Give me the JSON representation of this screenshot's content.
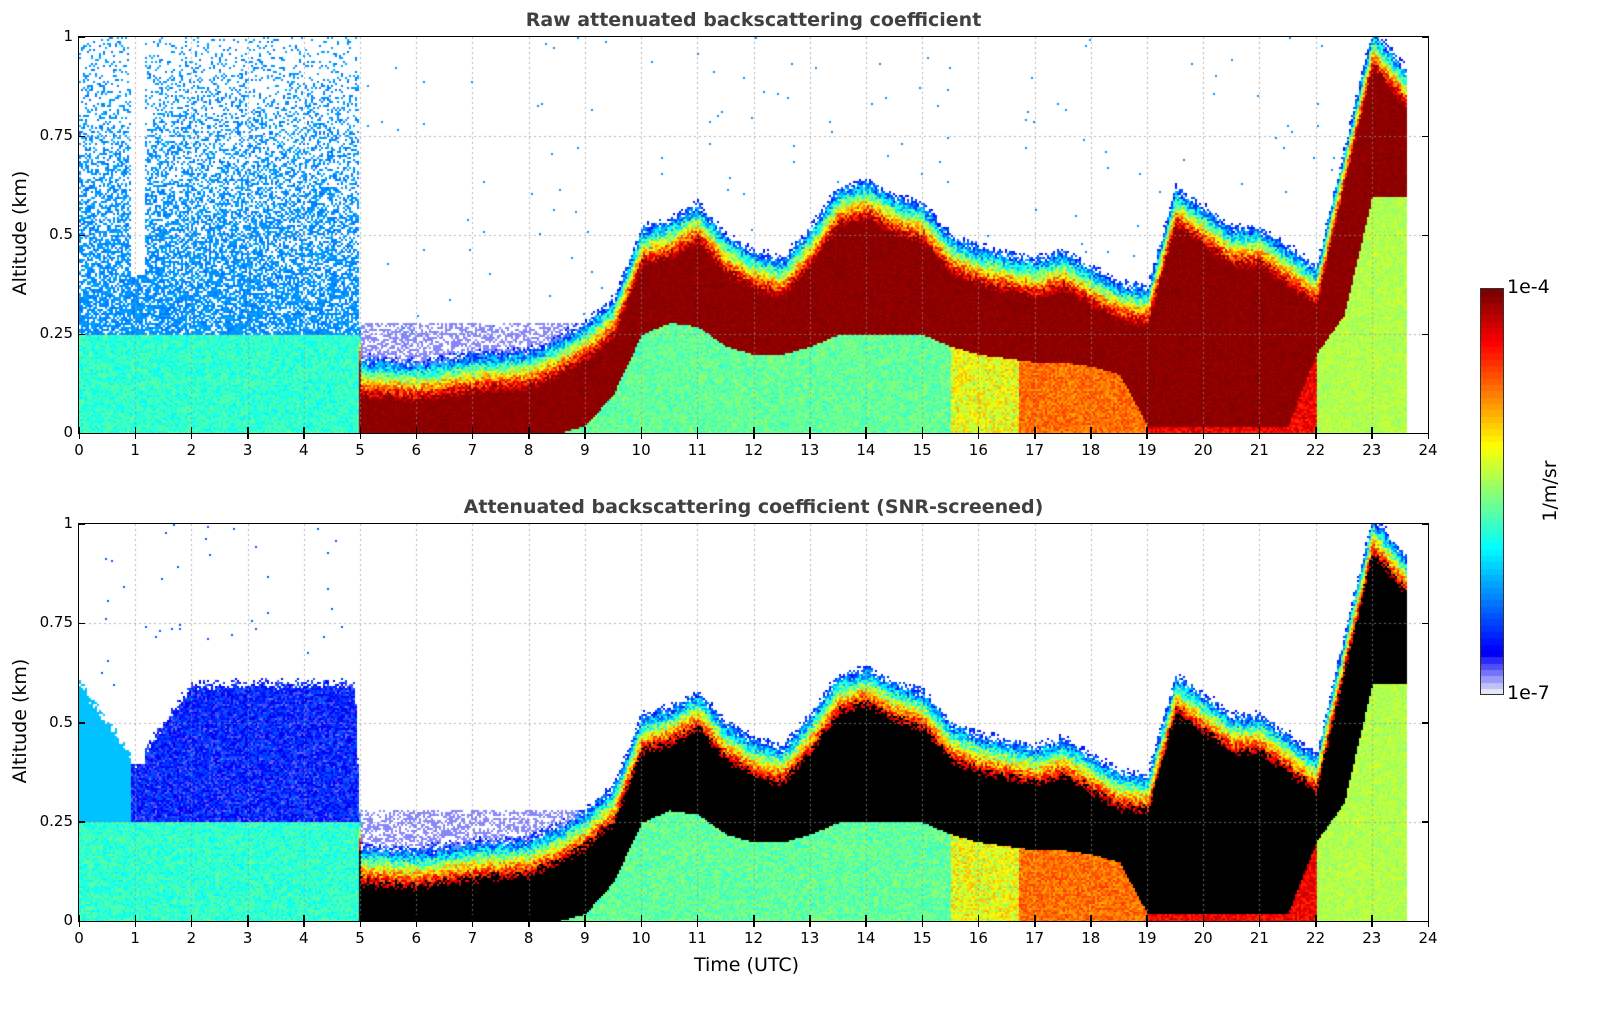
{
  "chart_data": [
    {
      "type": "heatmap",
      "title": "Raw attenuated backscattering coefficient",
      "ylabel": "Altitude (km)",
      "xlabel": "",
      "xlim": [
        0,
        24
      ],
      "ylim": [
        0,
        1
      ],
      "xticks": [
        "0",
        "1",
        "2",
        "3",
        "4",
        "5",
        "6",
        "7",
        "8",
        "9",
        "10",
        "11",
        "12",
        "13",
        "14",
        "15",
        "16",
        "17",
        "18",
        "19",
        "20",
        "21",
        "22",
        "23",
        "24"
      ],
      "yticks": [
        "0",
        "0.25",
        "0.5",
        "0.75",
        "1"
      ],
      "grid": true,
      "screened": false
    },
    {
      "type": "heatmap",
      "title": "Attenuated backscattering coefficient (SNR-screened)",
      "ylabel": "Altitude (km)",
      "xlabel": "Time (UTC)",
      "xlim": [
        0,
        24
      ],
      "ylim": [
        0,
        1
      ],
      "xticks": [
        "0",
        "1",
        "2",
        "3",
        "4",
        "5",
        "6",
        "7",
        "8",
        "9",
        "10",
        "11",
        "12",
        "13",
        "14",
        "15",
        "16",
        "17",
        "18",
        "19",
        "20",
        "21",
        "22",
        "23",
        "24"
      ],
      "yticks": [
        "0",
        "0.25",
        "0.5",
        "0.75",
        "1"
      ],
      "grid": true,
      "screened": true
    }
  ],
  "layer_profile": {
    "hours": [
      0,
      1,
      2,
      3,
      4,
      4.9,
      5.0,
      6,
      7,
      8,
      8.5,
      9,
      9.5,
      10,
      10.5,
      11,
      11.5,
      12,
      12.5,
      13,
      13.5,
      14,
      14.5,
      15,
      15.5,
      16,
      17,
      17.5,
      18,
      18.5,
      19,
      19.5,
      20,
      20.5,
      21,
      21.5,
      22,
      22.5,
      23,
      23.6
    ],
    "layer_top_km": [
      0.6,
      0.4,
      0.6,
      0.6,
      0.6,
      0.6,
      0.17,
      0.16,
      0.18,
      0.19,
      0.22,
      0.26,
      0.32,
      0.5,
      0.52,
      0.56,
      0.48,
      0.44,
      0.42,
      0.5,
      0.6,
      0.62,
      0.58,
      0.56,
      0.48,
      0.45,
      0.42,
      0.44,
      0.4,
      0.36,
      0.35,
      0.6,
      0.55,
      0.5,
      0.5,
      0.45,
      0.4,
      0.7,
      1.0,
      0.9
    ],
    "core_base_km": [
      0,
      0,
      0,
      0,
      0,
      0,
      0,
      0,
      0,
      0,
      0,
      0.02,
      0.1,
      0.25,
      0.28,
      0.27,
      0.22,
      0.2,
      0.2,
      0.22,
      0.25,
      0.25,
      0.25,
      0.25,
      0.22,
      0.2,
      0.18,
      0.18,
      0.17,
      0.15,
      0.02,
      0.02,
      0.02,
      0.02,
      0.02,
      0.02,
      0.2,
      0.3,
      0.6,
      0.6
    ]
  },
  "colorbar": {
    "label": "1/m/sr",
    "min_label": "1e-7",
    "max_label": "1e-4",
    "min": 1e-07,
    "max": 0.0001,
    "scale": "log",
    "colormap": "jet"
  }
}
